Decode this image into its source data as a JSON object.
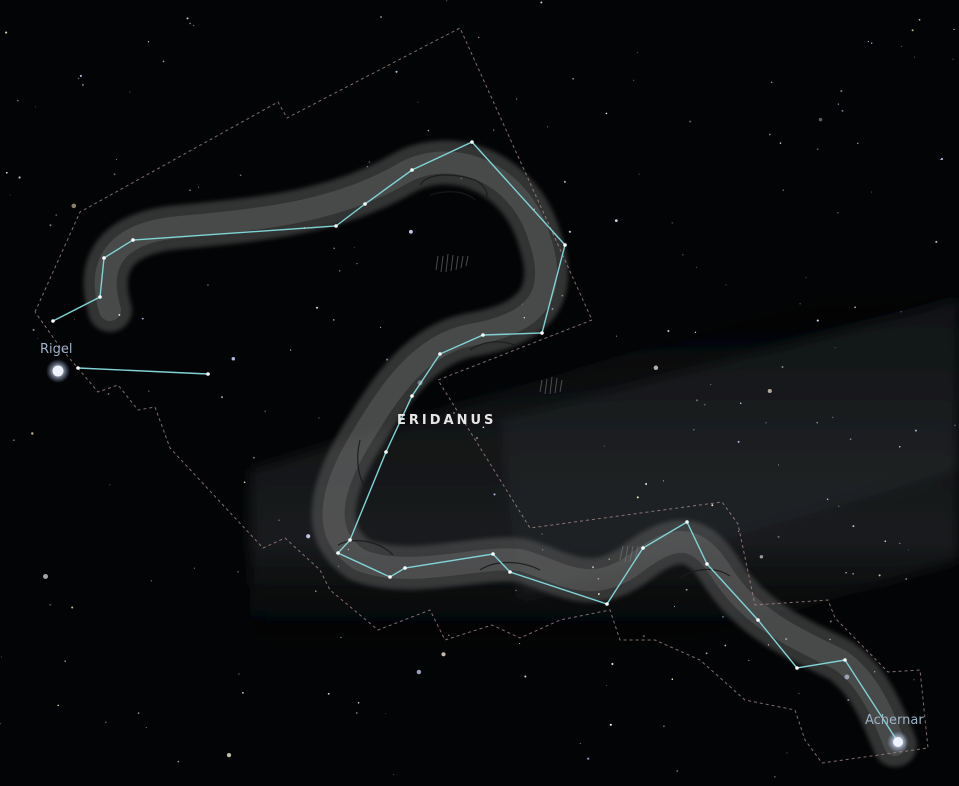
{
  "constellation": {
    "name": "ERIDANUS"
  },
  "named_stars": [
    {
      "name": "Rigel"
    },
    {
      "name": "Achernar"
    }
  ],
  "colors": {
    "sky": "#030405",
    "milky_way": "#2a2d30",
    "boundary": "#b08f8f",
    "stick_figure": "#7fd3d6",
    "star_label": "#9fb3c8",
    "constellation_label": "#e6e6e6"
  }
}
